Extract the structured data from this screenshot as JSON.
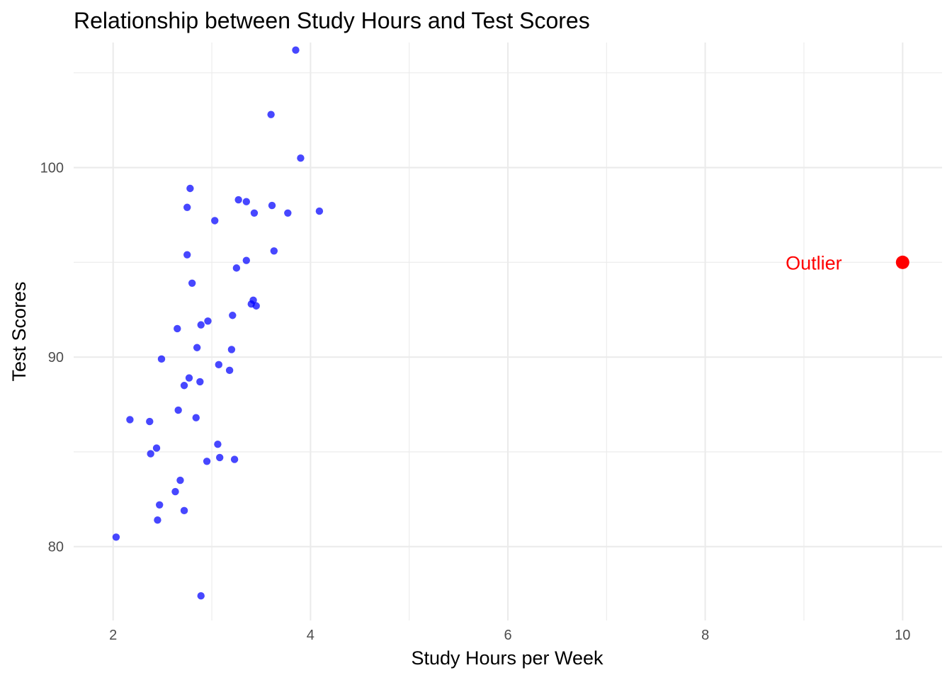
{
  "chart_data": {
    "type": "scatter",
    "title": "Relationship between Study Hours and Test Scores",
    "xlabel": "Study Hours per Week",
    "ylabel": "Test Scores",
    "xlim": [
      1.6,
      10.4
    ],
    "ylim": [
      76.1,
      106.6
    ],
    "x_ticks": [
      2,
      4,
      6,
      8,
      10
    ],
    "y_ticks": [
      80,
      90,
      100
    ],
    "grid": true,
    "colors": {
      "points": "#0000ff",
      "outlier": "#ff0000",
      "grid": "#ebebeb"
    },
    "points": [
      {
        "x": 3.85,
        "y": 106.2
      },
      {
        "x": 3.6,
        "y": 102.8
      },
      {
        "x": 3.9,
        "y": 100.5
      },
      {
        "x": 2.78,
        "y": 98.9
      },
      {
        "x": 3.27,
        "y": 98.3
      },
      {
        "x": 3.35,
        "y": 98.2
      },
      {
        "x": 3.61,
        "y": 98.0
      },
      {
        "x": 2.75,
        "y": 97.9
      },
      {
        "x": 3.43,
        "y": 97.6
      },
      {
        "x": 3.77,
        "y": 97.6
      },
      {
        "x": 4.09,
        "y": 97.7
      },
      {
        "x": 3.03,
        "y": 97.2
      },
      {
        "x": 3.63,
        "y": 95.6
      },
      {
        "x": 2.75,
        "y": 95.4
      },
      {
        "x": 3.35,
        "y": 95.1
      },
      {
        "x": 3.25,
        "y": 94.7
      },
      {
        "x": 2.8,
        "y": 93.9
      },
      {
        "x": 3.42,
        "y": 93.0
      },
      {
        "x": 3.4,
        "y": 92.8
      },
      {
        "x": 3.45,
        "y": 92.7
      },
      {
        "x": 3.21,
        "y": 92.2
      },
      {
        "x": 2.96,
        "y": 91.9
      },
      {
        "x": 2.89,
        "y": 91.7
      },
      {
        "x": 2.65,
        "y": 91.5
      },
      {
        "x": 2.85,
        "y": 90.5
      },
      {
        "x": 3.2,
        "y": 90.4
      },
      {
        "x": 2.49,
        "y": 89.9
      },
      {
        "x": 3.07,
        "y": 89.6
      },
      {
        "x": 3.18,
        "y": 89.3
      },
      {
        "x": 2.77,
        "y": 88.9
      },
      {
        "x": 2.88,
        "y": 88.7
      },
      {
        "x": 2.72,
        "y": 88.5
      },
      {
        "x": 2.66,
        "y": 87.2
      },
      {
        "x": 2.17,
        "y": 86.7
      },
      {
        "x": 2.37,
        "y": 86.6
      },
      {
        "x": 2.84,
        "y": 86.8
      },
      {
        "x": 3.06,
        "y": 85.4
      },
      {
        "x": 2.44,
        "y": 85.2
      },
      {
        "x": 2.38,
        "y": 84.9
      },
      {
        "x": 3.08,
        "y": 84.7
      },
      {
        "x": 3.23,
        "y": 84.6
      },
      {
        "x": 2.95,
        "y": 84.5
      },
      {
        "x": 2.68,
        "y": 83.5
      },
      {
        "x": 2.63,
        "y": 82.9
      },
      {
        "x": 2.47,
        "y": 82.2
      },
      {
        "x": 2.72,
        "y": 81.9
      },
      {
        "x": 2.45,
        "y": 81.4
      },
      {
        "x": 2.03,
        "y": 80.5
      },
      {
        "x": 2.89,
        "y": 77.4
      }
    ],
    "outlier": {
      "x": 10,
      "y": 95
    },
    "annotations": [
      {
        "text": "Outlier",
        "x": 9.1,
        "y": 95
      }
    ]
  }
}
